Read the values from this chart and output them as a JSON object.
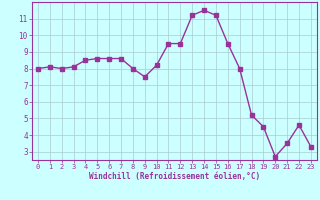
{
  "x": [
    0,
    1,
    2,
    3,
    4,
    5,
    6,
    7,
    8,
    9,
    10,
    11,
    12,
    13,
    14,
    15,
    16,
    17,
    18,
    19,
    20,
    21,
    22,
    23
  ],
  "y": [
    8.0,
    8.1,
    8.0,
    8.1,
    8.5,
    8.6,
    8.6,
    8.6,
    8.0,
    7.5,
    8.2,
    9.5,
    9.5,
    11.2,
    11.5,
    11.2,
    9.5,
    8.0,
    5.2,
    4.5,
    2.7,
    3.5,
    4.6,
    3.3
  ],
  "line_color": "#993399",
  "marker": "s",
  "marker_size": 2.2,
  "line_width": 1.0,
  "bg_color": "#ccffff",
  "grid_color": "#aacccc",
  "xlabel": "Windchill (Refroidissement éolien,°C)",
  "xlabel_color": "#993399",
  "tick_label_color": "#993399",
  "ylim": [
    2.5,
    12.0
  ],
  "xlim": [
    -0.5,
    23.5
  ],
  "yticks": [
    3,
    4,
    5,
    6,
    7,
    8,
    9,
    10,
    11
  ],
  "xtick_labels": [
    "0",
    "1",
    "2",
    "3",
    "4",
    "5",
    "6",
    "7",
    "8",
    "9",
    "10",
    "11",
    "12",
    "13",
    "14",
    "15",
    "16",
    "17",
    "18",
    "19",
    "20",
    "21",
    "22",
    "23"
  ],
  "axis_color": "#993399",
  "spine_color": "#993399"
}
